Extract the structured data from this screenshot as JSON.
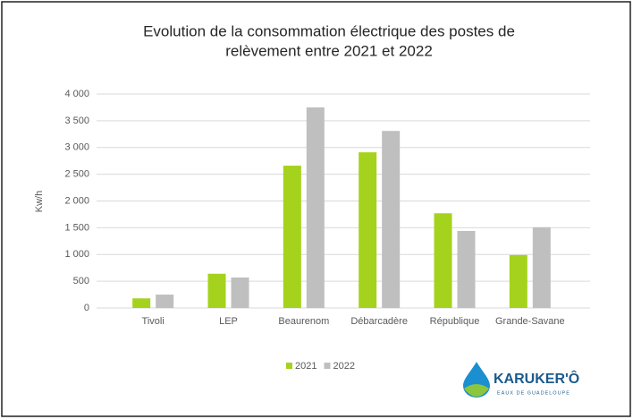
{
  "chart_data": {
    "type": "bar",
    "title": [
      "Evolution de la consommation électrique des postes de",
      "relèvement entre 2021 et 2022"
    ],
    "y_label": "Kw/h",
    "categories": [
      "Tivoli",
      "LEP",
      "Beaurenom",
      "Débarcadère",
      "République",
      "Grande-Savane"
    ],
    "series": [
      {
        "name": "2021",
        "color": "#a5d21c",
        "values": [
          180,
          640,
          2660,
          2910,
          1770,
          990
        ]
      },
      {
        "name": "2022",
        "color": "#bfbfbf",
        "values": [
          250,
          570,
          3750,
          3310,
          1440,
          1510
        ]
      }
    ],
    "ylim": [
      0,
      4000
    ],
    "yticks": [
      0,
      500,
      {
        "value": 1000,
        "label": "1 000"
      },
      {
        "value": 1500,
        "label": "1 500"
      },
      {
        "value": 2000,
        "label": "2 000"
      },
      {
        "value": 2500,
        "label": "2 500"
      },
      {
        "value": 3000,
        "label": "3 000"
      },
      {
        "value": 3500,
        "label": "3 500"
      },
      {
        "value": 4000,
        "label": "4 000"
      }
    ],
    "grid": true,
    "legend": "bottom"
  },
  "logo": {
    "name": "KARUKER'Ô",
    "tagline": "EAUX DE GUADELOUPE"
  }
}
